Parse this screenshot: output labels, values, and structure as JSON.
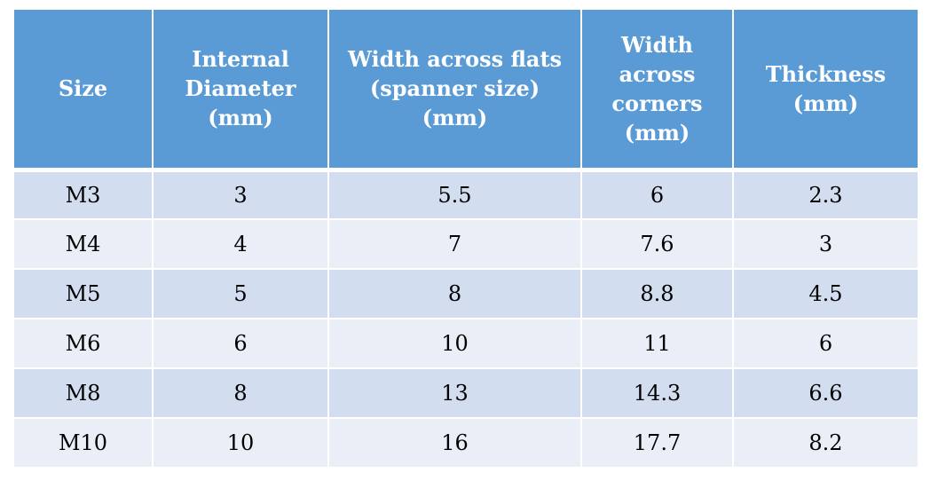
{
  "table": {
    "headers": [
      "Size",
      "Internal Diameter (mm)",
      "Width across flats (spanner size) (mm)",
      "Width across corners (mm)",
      "Thickness (mm)"
    ],
    "rows": [
      [
        "M3",
        "3",
        "5.5",
        "6",
        "2.3"
      ],
      [
        "M4",
        "4",
        "7",
        "7.6",
        "3"
      ],
      [
        "M5",
        "5",
        "8",
        "8.8",
        "4.5"
      ],
      [
        "M6",
        "6",
        "10",
        "11",
        "6"
      ],
      [
        "M8",
        "8",
        "13",
        "14.3",
        "6.6"
      ],
      [
        "M10",
        "10",
        "16",
        "17.7",
        "8.2"
      ]
    ]
  },
  "colors": {
    "header_bg": "#5b9bd5",
    "header_text": "#ffffff",
    "row_band_1": "#d2deef",
    "row_band_2": "#eaeff7"
  }
}
